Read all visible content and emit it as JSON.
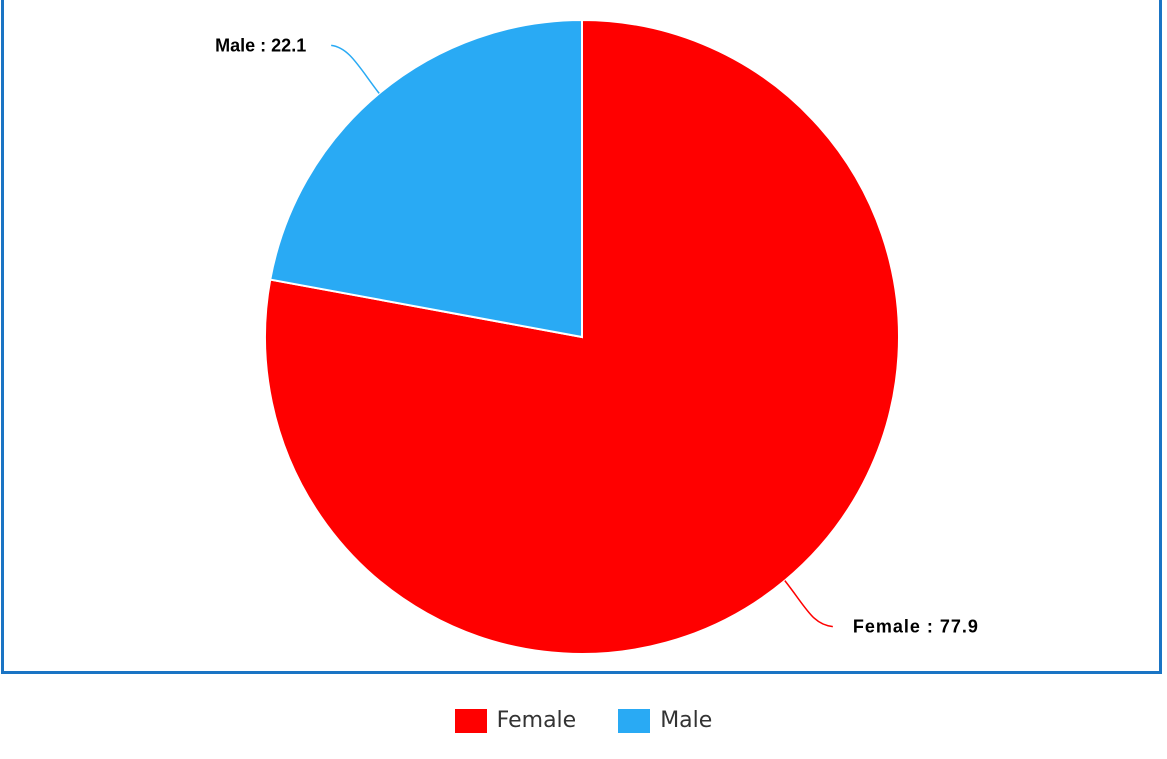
{
  "chart_data": {
    "type": "pie",
    "title": "",
    "slices": [
      {
        "name": "Female",
        "value": 77.9,
        "color": "#ff0000",
        "label": "Female : 77.9"
      },
      {
        "name": "Male",
        "value": 22.1,
        "color": "#29aaf4",
        "label": "Male : 22.1"
      }
    ],
    "legend_position": "bottom-center"
  },
  "legend": {
    "items": [
      {
        "label": "Female",
        "color": "#ff0000"
      },
      {
        "label": "Male",
        "color": "#29aaf4"
      }
    ]
  }
}
